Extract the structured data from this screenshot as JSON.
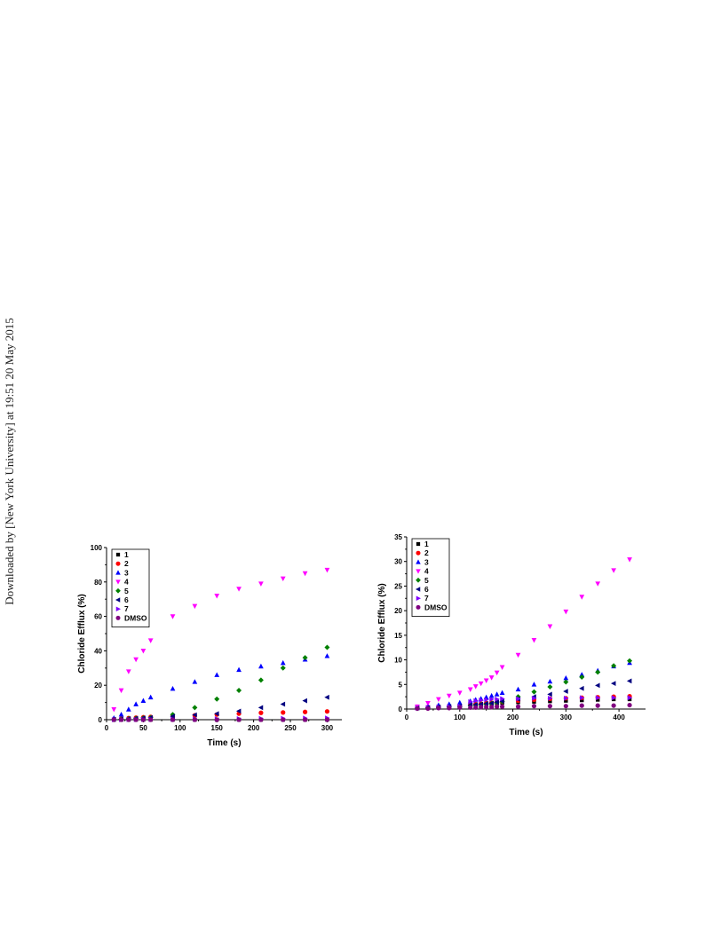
{
  "watermark": "Downloaded by [New York University] at 19:51 20 May 2015",
  "chart_data": [
    {
      "type": "scatter",
      "xlabel": "Time (s)",
      "ylabel": "Chloride Efflux (%)",
      "xlim": [
        0,
        320
      ],
      "ylim": [
        0,
        100
      ],
      "xticks": [
        0,
        50,
        100,
        150,
        200,
        250,
        300
      ],
      "yticks": [
        0,
        20,
        40,
        60,
        80,
        100
      ],
      "legend_position": "top-left",
      "series": [
        {
          "name": "1",
          "marker": "square",
          "color": "#000000",
          "x": [
            10,
            20,
            30,
            40,
            50,
            60,
            90,
            120,
            150,
            180,
            210,
            240,
            270,
            300
          ],
          "y": [
            0,
            0,
            0,
            0,
            0,
            0,
            0,
            0,
            0,
            0,
            0,
            0,
            0,
            0
          ]
        },
        {
          "name": "2",
          "marker": "circle",
          "color": "#ff0000",
          "x": [
            10,
            20,
            30,
            40,
            50,
            60,
            90,
            120,
            150,
            180,
            210,
            240,
            270,
            300
          ],
          "y": [
            0.3,
            0.6,
            0.9,
            1.2,
            1.4,
            1.6,
            2,
            2.5,
            3,
            3.5,
            4,
            4.2,
            4.5,
            4.8
          ]
        },
        {
          "name": "3",
          "marker": "triangle-up",
          "color": "#0000ff",
          "x": [
            10,
            20,
            30,
            40,
            50,
            60,
            90,
            120,
            150,
            180,
            210,
            240,
            270,
            300
          ],
          "y": [
            1,
            3,
            6,
            9,
            11,
            13,
            18,
            22,
            26,
            29,
            31,
            33,
            35,
            37
          ]
        },
        {
          "name": "4",
          "marker": "triangle-down",
          "color": "#ff00ff",
          "x": [
            10,
            20,
            30,
            40,
            50,
            60,
            90,
            120,
            150,
            180,
            210,
            240,
            270,
            300
          ],
          "y": [
            6,
            17,
            28,
            35,
            40,
            46,
            60,
            66,
            72,
            76,
            79,
            82,
            85,
            87
          ]
        },
        {
          "name": "5",
          "marker": "diamond",
          "color": "#008000",
          "x": [
            10,
            20,
            30,
            40,
            50,
            60,
            90,
            120,
            150,
            180,
            210,
            240,
            270,
            300
          ],
          "y": [
            0,
            0.3,
            0.5,
            0.8,
            1,
            1.2,
            3,
            7,
            12,
            17,
            23,
            30,
            36,
            42
          ]
        },
        {
          "name": "6",
          "marker": "triangle-left",
          "color": "#000080",
          "x": [
            10,
            20,
            30,
            40,
            50,
            60,
            90,
            120,
            150,
            180,
            210,
            240,
            270,
            300
          ],
          "y": [
            0.2,
            0.4,
            0.6,
            0.8,
            1,
            1.2,
            2,
            2.8,
            3.5,
            5,
            7,
            9,
            11,
            13
          ]
        },
        {
          "name": "7",
          "marker": "triangle-right",
          "color": "#8000ff",
          "x": [
            10,
            20,
            30,
            40,
            50,
            60,
            90,
            120,
            150,
            180,
            210,
            240,
            270,
            300
          ],
          "y": [
            0,
            0,
            0.1,
            0.1,
            0.2,
            0.2,
            0.3,
            0.4,
            0.5,
            0.6,
            0.7,
            0.8,
            0.9,
            1
          ]
        },
        {
          "name": "DMSO",
          "marker": "circle",
          "color": "#800080",
          "x": [
            10,
            20,
            30,
            40,
            50,
            60,
            90,
            120,
            150,
            180,
            210,
            240,
            270,
            300
          ],
          "y": [
            0,
            0,
            0,
            0,
            0,
            0,
            0,
            0,
            0,
            0,
            0,
            0,
            0,
            0
          ]
        }
      ]
    },
    {
      "type": "scatter",
      "xlabel": "Time (s)",
      "ylabel": "Chloride Efflux (%)",
      "xlim": [
        0,
        450
      ],
      "ylim": [
        0,
        35
      ],
      "xticks": [
        0,
        100,
        200,
        300,
        400
      ],
      "yticks": [
        0,
        5,
        10,
        15,
        20,
        25,
        30,
        35
      ],
      "legend_position": "top-left",
      "series": [
        {
          "name": "1",
          "marker": "square",
          "color": "#000000",
          "x": [
            20,
            40,
            60,
            80,
            100,
            120,
            130,
            140,
            150,
            160,
            170,
            180,
            210,
            240,
            270,
            300,
            330,
            360,
            390,
            420
          ],
          "y": [
            0.2,
            0.3,
            0.4,
            0.5,
            0.6,
            0.7,
            0.8,
            0.9,
            1,
            1.1,
            1.2,
            1.3,
            1.4,
            1.5,
            1.6,
            1.7,
            1.8,
            1.9,
            2,
            2
          ]
        },
        {
          "name": "2",
          "marker": "circle",
          "color": "#ff0000",
          "x": [
            20,
            40,
            60,
            80,
            100,
            120,
            130,
            140,
            150,
            160,
            170,
            180,
            210,
            240,
            270,
            300,
            330,
            360,
            390,
            420
          ],
          "y": [
            0.3,
            0.4,
            0.5,
            0.6,
            0.7,
            0.9,
            1,
            1.1,
            1.2,
            1.3,
            1.4,
            1.5,
            1.7,
            1.9,
            2.1,
            2.2,
            2.3,
            2.4,
            2.5,
            2.6
          ]
        },
        {
          "name": "3",
          "marker": "triangle-up",
          "color": "#0000ff",
          "x": [
            20,
            40,
            60,
            80,
            100,
            120,
            130,
            140,
            150,
            160,
            170,
            180,
            210,
            240,
            270,
            300,
            330,
            360,
            390,
            420
          ],
          "y": [
            0.4,
            0.6,
            0.8,
            1,
            1.3,
            1.6,
            1.9,
            2.1,
            2.4,
            2.7,
            3,
            3.3,
            4,
            5,
            5.6,
            6.3,
            7,
            7.8,
            8.7,
            9.4
          ]
        },
        {
          "name": "4",
          "marker": "triangle-down",
          "color": "#ff00ff",
          "x": [
            20,
            40,
            60,
            80,
            100,
            120,
            130,
            140,
            150,
            160,
            170,
            180,
            210,
            240,
            270,
            300,
            330,
            360,
            390,
            420
          ],
          "y": [
            0.5,
            1.2,
            2,
            2.7,
            3.3,
            4,
            4.6,
            5.2,
            5.8,
            6.4,
            7.4,
            8.5,
            11,
            14,
            16.8,
            19.8,
            22.8,
            25.5,
            28.2,
            30.4
          ]
        },
        {
          "name": "5",
          "marker": "diamond",
          "color": "#008000",
          "x": [
            20,
            40,
            60,
            80,
            100,
            120,
            130,
            140,
            150,
            160,
            170,
            180,
            210,
            240,
            270,
            300,
            330,
            360,
            390,
            420
          ],
          "y": [
            0.1,
            0.2,
            0.3,
            0.4,
            0.5,
            0.7,
            0.8,
            0.9,
            1,
            1.1,
            1.3,
            1.5,
            2.5,
            3.5,
            4.5,
            5.5,
            6.5,
            7.5,
            8.8,
            9.8
          ]
        },
        {
          "name": "6",
          "marker": "triangle-left",
          "color": "#000080",
          "x": [
            20,
            40,
            60,
            80,
            100,
            120,
            130,
            140,
            150,
            160,
            170,
            180,
            210,
            240,
            270,
            300,
            330,
            360,
            390,
            420
          ],
          "y": [
            0.2,
            0.3,
            0.4,
            0.5,
            0.6,
            0.8,
            0.9,
            1,
            1.1,
            1.2,
            1.4,
            1.6,
            2,
            2.5,
            3,
            3.6,
            4.2,
            4.8,
            5.2,
            5.7
          ]
        },
        {
          "name": "7",
          "marker": "triangle-right",
          "color": "#8000ff",
          "x": [
            20,
            40,
            60,
            80,
            100,
            120,
            130,
            140,
            150,
            160,
            170,
            180,
            210,
            240,
            270,
            300,
            330,
            360,
            390,
            420
          ],
          "y": [
            0.2,
            0.3,
            0.4,
            0.5,
            0.6,
            1.5,
            1.7,
            1.8,
            1.9,
            2,
            2,
            2.1,
            2.1,
            2.2,
            2.2,
            2.2,
            2.3,
            2.3,
            2.3,
            2.3
          ]
        },
        {
          "name": "DMSO",
          "marker": "circle",
          "color": "#800080",
          "x": [
            20,
            40,
            60,
            80,
            100,
            120,
            130,
            140,
            150,
            160,
            170,
            180,
            210,
            240,
            270,
            300,
            330,
            360,
            390,
            420
          ],
          "y": [
            0.1,
            0.1,
            0.2,
            0.2,
            0.3,
            0.3,
            0.3,
            0.4,
            0.4,
            0.4,
            0.5,
            0.5,
            0.5,
            0.6,
            0.6,
            0.6,
            0.7,
            0.7,
            0.7,
            0.8
          ]
        }
      ]
    }
  ]
}
